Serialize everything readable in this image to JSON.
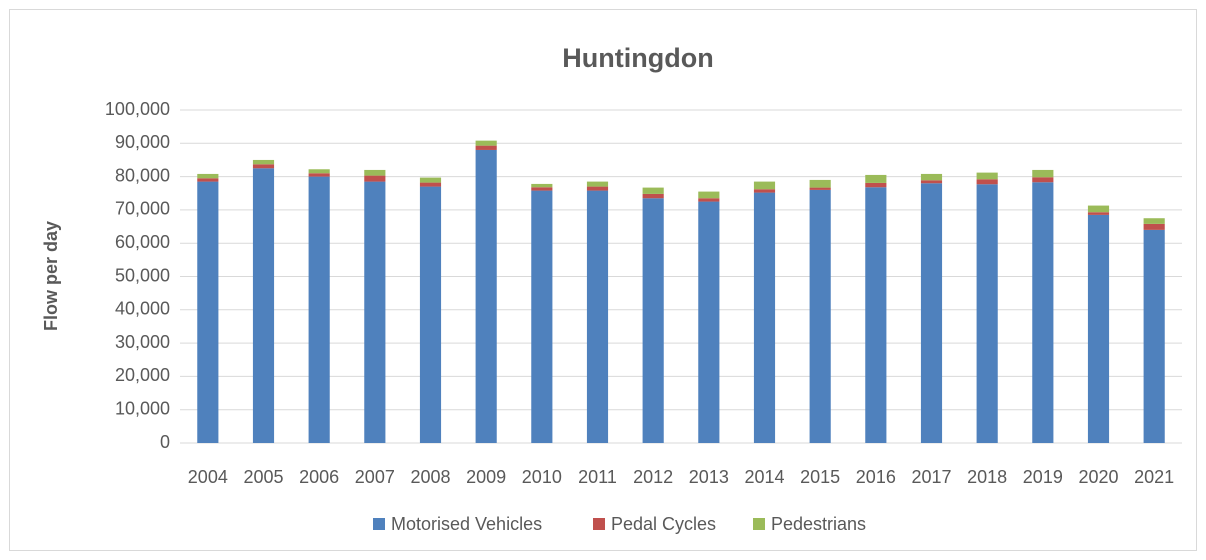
{
  "chart_data": {
    "type": "stacked_bar",
    "title": "Huntingdon",
    "y_label": "Flow per day",
    "categories": [
      "2004",
      "2005",
      "2006",
      "2007",
      "2008",
      "2009",
      "2010",
      "2011",
      "2012",
      "2013",
      "2014",
      "2015",
      "2016",
      "2017",
      "2018",
      "2019",
      "2020",
      "2021"
    ],
    "series": [
      {
        "name": "Motorised Vehicles",
        "color": "#4f81bd",
        "values": [
          78500,
          82500,
          80000,
          78500,
          77000,
          88000,
          75800,
          75800,
          73500,
          72500,
          75200,
          76000,
          76800,
          78000,
          77700,
          78300,
          68500,
          64000
        ]
      },
      {
        "name": "Pedal Cycles",
        "color": "#c0504d",
        "values": [
          1000,
          1200,
          1000,
          1800,
          1200,
          1300,
          1000,
          1200,
          1300,
          1000,
          1000,
          700,
          1300,
          900,
          1500,
          1500,
          800,
          1800
        ]
      },
      {
        "name": "Pedestrians",
        "color": "#9bbb59",
        "values": [
          1300,
          1300,
          1200,
          1700,
          1500,
          1500,
          1000,
          1500,
          1900,
          2000,
          2300,
          2300,
          2400,
          1900,
          2000,
          2200,
          2000,
          1700
        ]
      }
    ],
    "ylim": [
      0,
      100000
    ],
    "yticks": [
      0,
      {
        "value": 10000,
        "label": "10,000"
      },
      {
        "value": 20000,
        "label": "20,000"
      },
      {
        "value": 30000,
        "label": "30,000"
      },
      {
        "value": 40000,
        "label": "40,000"
      },
      {
        "value": 50000,
        "label": "50,000"
      },
      {
        "value": 60000,
        "label": "60,000"
      },
      {
        "value": 70000,
        "label": "70,000"
      },
      {
        "value": 80000,
        "label": "80,000"
      },
      {
        "value": 90000,
        "label": "90,000"
      },
      {
        "value": 100000,
        "label": "100,000"
      }
    ],
    "grid": true,
    "legend": "bottom"
  }
}
